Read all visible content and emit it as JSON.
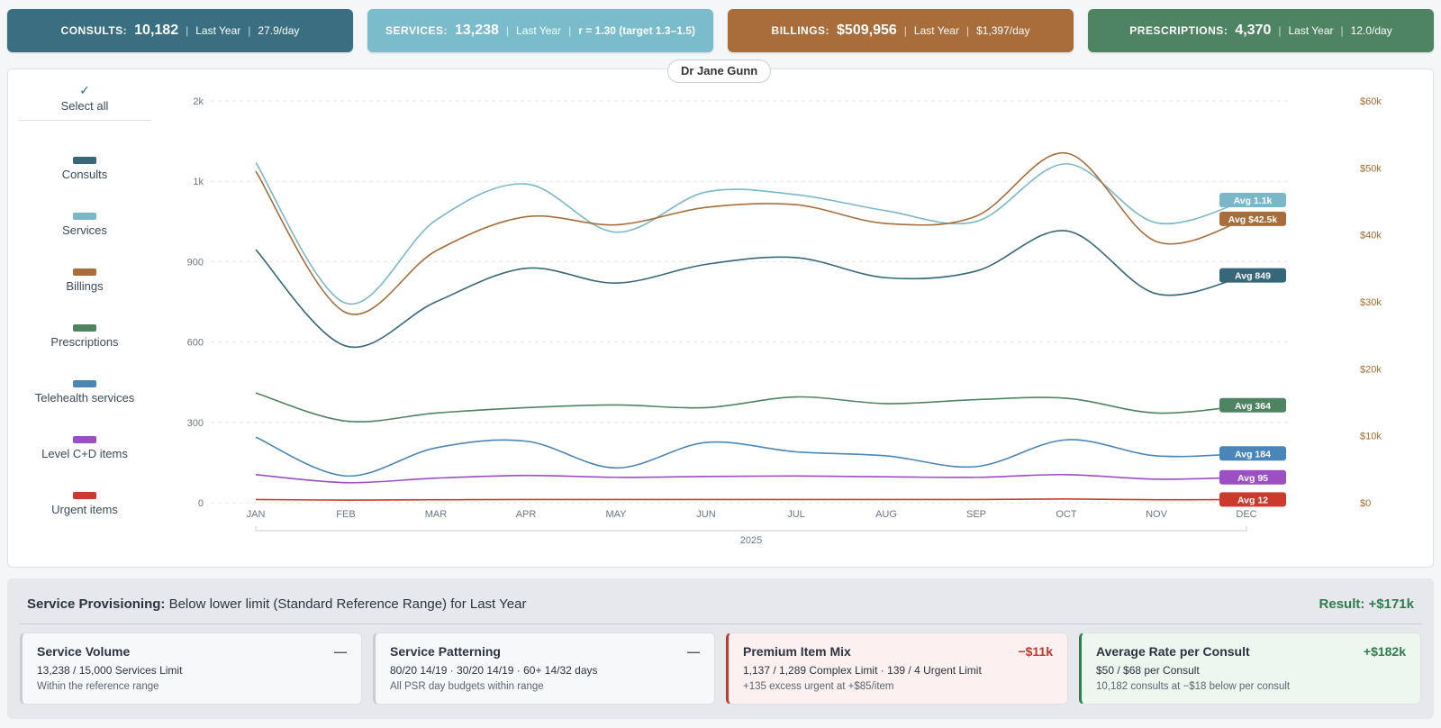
{
  "kpis": [
    {
      "label": "CONSULTS:",
      "value": "10,182",
      "period": "Last Year",
      "extra": "27.9/day",
      "color": "#3a6f82"
    },
    {
      "label": "SERVICES:",
      "value": "13,238",
      "period": "Last Year",
      "extra": "r = 1.30 (target 1.3–1.5)",
      "color": "#7bbccc"
    },
    {
      "label": "BILLINGS:",
      "value": "$509,956",
      "period": "Last Year",
      "extra": "$1,397/day",
      "color": "#a86d3a"
    },
    {
      "label": "PRESCRIPTIONS:",
      "value": "4,370",
      "period": "Last Year",
      "extra": "12.0/day",
      "color": "#4f8463"
    }
  ],
  "chart_title": "Dr Jane Gunn",
  "legend": {
    "select_all": "Select all",
    "items": [
      {
        "label": "Consults",
        "color": "#36687a"
      },
      {
        "label": "Services",
        "color": "#7ab8c8"
      },
      {
        "label": "Billings",
        "color": "#a86d3a"
      },
      {
        "label": "Prescriptions",
        "color": "#4f8463"
      },
      {
        "label": "Telehealth services",
        "color": "#4a86b8"
      },
      {
        "label": "Level C+D items",
        "color": "#9b4fc2"
      },
      {
        "label": "Urgent items",
        "color": "#cc3a2e"
      }
    ]
  },
  "chart_data": {
    "type": "line",
    "title": "",
    "xlabel": "2025",
    "x": [
      "JAN",
      "FEB",
      "MAR",
      "APR",
      "MAY",
      "JUN",
      "JUL",
      "AUG",
      "SEP",
      "OCT",
      "NOV",
      "DEC"
    ],
    "y_left": {
      "ticks": [
        "0",
        "300",
        "600",
        "900",
        "1k",
        "2k"
      ],
      "values": [
        0,
        300,
        600,
        900,
        1200,
        1500
      ],
      "range": [
        0,
        1500
      ]
    },
    "y_right": {
      "ticks": [
        "$0",
        "$10k",
        "$20k",
        "$30k",
        "$40k",
        "$50k",
        "$60k"
      ],
      "values": [
        0,
        10000,
        20000,
        30000,
        40000,
        50000,
        60000
      ],
      "range": [
        0,
        60000
      ]
    },
    "grid": true,
    "series": [
      {
        "name": "Services",
        "axis": "left",
        "color": "#7ab8c8",
        "avg_label": "Avg 1.1k",
        "values": [
          1270,
          745,
          1055,
          1190,
          1010,
          1160,
          1150,
          1090,
          1050,
          1265,
          1045,
          1130
        ]
      },
      {
        "name": "Billings",
        "axis": "right",
        "color": "#a86d3a",
        "avg_label": "Avg $42.5k",
        "values": [
          49500,
          28400,
          37600,
          42700,
          41500,
          44100,
          44500,
          41700,
          42800,
          52200,
          39000,
          42400
        ]
      },
      {
        "name": "Consults",
        "axis": "left",
        "color": "#36687a",
        "avg_label": "Avg 849",
        "values": [
          945,
          585,
          750,
          875,
          820,
          890,
          915,
          840,
          865,
          1015,
          780,
          849
        ]
      },
      {
        "name": "Prescriptions",
        "axis": "left",
        "color": "#4f8463",
        "avg_label": "Avg 364",
        "values": [
          410,
          305,
          335,
          355,
          365,
          355,
          395,
          370,
          385,
          390,
          335,
          364
        ]
      },
      {
        "name": "Telehealth services",
        "axis": "left",
        "color": "#4a86b8",
        "avg_label": "Avg 184",
        "values": [
          245,
          100,
          205,
          230,
          130,
          225,
          190,
          175,
          135,
          235,
          175,
          184
        ]
      },
      {
        "name": "Level C+D items",
        "axis": "left",
        "color": "#9b4fc2",
        "avg_label": "Avg 95",
        "values": [
          105,
          75,
          92,
          102,
          95,
          98,
          100,
          97,
          95,
          105,
          88,
          95
        ]
      },
      {
        "name": "Urgent items",
        "axis": "left",
        "color": "#cc3a2e",
        "avg_label": "Avg 12",
        "values": [
          12,
          10,
          11,
          12,
          12,
          12,
          12,
          12,
          12,
          14,
          11,
          12
        ]
      }
    ]
  },
  "service_provisioning": {
    "title": "Service Provisioning:",
    "subtitle": "Below lower limit (Standard Reference Range) for Last Year",
    "result": "Result: +$171k",
    "cards": [
      {
        "title": "Service Volume",
        "delta": "—",
        "line1": "13,238 / 15,000 Services Limit",
        "line2": "Within the reference range",
        "tone": "neutral"
      },
      {
        "title": "Service Patterning",
        "delta": "—",
        "line1": "80/20 14/19 · 30/20 14/19 · 60+ 14/32 days",
        "line2": "All PSR day budgets within range",
        "tone": "neutral"
      },
      {
        "title": "Premium Item Mix",
        "delta": "−$11k",
        "line1": "1,137 / 1,289 Complex Limit · 139 / 4 Urgent Limit",
        "line2": "+135 excess urgent at +$85/item",
        "tone": "neg"
      },
      {
        "title": "Average Rate per Consult",
        "delta": "+$182k",
        "line1": "$50 / $68 per Consult",
        "line2": "10,182 consults at −$18 below per consult",
        "tone": "pos"
      }
    ]
  }
}
